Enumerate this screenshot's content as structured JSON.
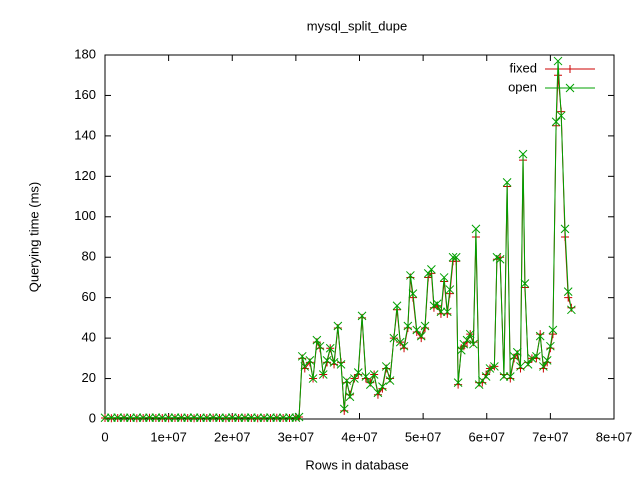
{
  "chart_data": {
    "type": "line",
    "title": "mysql_split_dupe",
    "xlabel": "Rows in database",
    "ylabel": "Querying time (ms)",
    "x": [
      0,
      1000000.0,
      2000000.0,
      3000000.0,
      4000000.0,
      5000000.0,
      6000000.0,
      7000000.0,
      8000000.0,
      9000000.0,
      10000000.0,
      11000000.0,
      12000000.0,
      13000000.0,
      14000000.0,
      15000000.0,
      16000000.0,
      17000000.0,
      18000000.0,
      19000000.0,
      20000000.0,
      21000000.0,
      22000000.0,
      23000000.0,
      24000000.0,
      25000000.0,
      26000000.0,
      27000000.0,
      28000000.0,
      29000000.0,
      30000000.0,
      30500000.0,
      31000000.0,
      31400000.0,
      32200000.0,
      32700000.0,
      33300000.0,
      33800000.0,
      34300000.0,
      34900000.0,
      35400000.0,
      36000000.0,
      36600000.0,
      37100000.0,
      37600000.0,
      38000000.0,
      38500000.0,
      39200000.0,
      39800000.0,
      40400000.0,
      41000000.0,
      41700000.0,
      42300000.0,
      42900000.0,
      43600000.0,
      44200000.0,
      44800000.0,
      45400000.0,
      45900000.0,
      46400000.0,
      47000000.0,
      47600000.0,
      48000000.0,
      48400000.0,
      49000000.0,
      49700000.0,
      50300000.0,
      50800000.0,
      51300000.0,
      51700000.0,
      52200000.0,
      52800000.0,
      53300000.0,
      53800000.0,
      54200000.0,
      54700000.0,
      55200000.0,
      55500000.0,
      56000000.0,
      56400000.0,
      56900000.0,
      57400000.0,
      57900000.0,
      58300000.0,
      58800000.0,
      59300000.0,
      59900000.0,
      60500000.0,
      61200000.0,
      61600000.0,
      62100000.0,
      62700000.0,
      63200000.0,
      63700000.0,
      64300000.0,
      64800000.0,
      65300000.0,
      65700000.0,
      66000000.0,
      66500000.0,
      67100000.0,
      67800000.0,
      68400000.0,
      68900000.0,
      69500000.0,
      70000000.0,
      70400000.0,
      70900000.0,
      71200000.0,
      71700000.0,
      72300000.0,
      72800000.0,
      73300000.0
    ],
    "series": [
      {
        "name": "fixed",
        "color": "#cc0000",
        "marker": "+",
        "values": [
          0.5,
          0.4,
          0.5,
          0.6,
          0.5,
          0.4,
          0.5,
          0.6,
          0.5,
          0.5,
          0.4,
          0.5,
          0.6,
          0.5,
          0.4,
          0.5,
          0.5,
          0.6,
          0.5,
          0.4,
          0.5,
          0.5,
          0.6,
          0.5,
          0.4,
          0.5,
          0.5,
          0.6,
          0.5,
          0.5,
          0.6,
          1,
          30,
          25,
          28,
          20,
          38,
          35,
          22,
          28,
          35,
          27,
          45,
          28,
          4,
          18,
          12,
          20,
          22,
          50,
          20,
          18,
          22,
          12,
          15,
          25,
          20,
          40,
          54,
          38,
          35,
          45,
          70,
          60,
          43,
          40,
          45,
          70,
          72,
          55,
          56,
          52,
          68,
          52,
          62,
          78,
          78,
          17,
          35,
          36,
          38,
          42,
          38,
          90,
          18,
          18,
          22,
          25,
          26,
          79,
          80,
          22,
          115,
          20,
          30,
          32,
          25,
          128,
          65,
          28,
          30,
          30,
          42,
          25,
          28,
          35,
          42,
          145,
          170,
          152,
          90,
          60,
          55
        ]
      },
      {
        "name": "open",
        "color": "#00a000",
        "marker": "x",
        "values": [
          0.6,
          0.6,
          0.7,
          0.6,
          0.6,
          0.7,
          0.6,
          0.6,
          0.7,
          0.6,
          0.6,
          0.7,
          0.6,
          0.6,
          0.7,
          0.6,
          0.6,
          0.7,
          0.6,
          0.6,
          0.7,
          0.6,
          0.6,
          0.7,
          0.6,
          0.6,
          0.7,
          0.6,
          0.6,
          0.7,
          0.6,
          1,
          31,
          26,
          29,
          20,
          39,
          36,
          22,
          29,
          35,
          28,
          46,
          27,
          5,
          19,
          11,
          20,
          23,
          51,
          21,
          17,
          22,
          13,
          16,
          26,
          19,
          40,
          56,
          38,
          36,
          46,
          71,
          62,
          44,
          41,
          46,
          72,
          74,
          56,
          57,
          53,
          70,
          53,
          64,
          80,
          80,
          18,
          34,
          37,
          39,
          42,
          37,
          94,
          17,
          19,
          21,
          25,
          26,
          80,
          79,
          21,
          117,
          21,
          31,
          33,
          26,
          131,
          67,
          27,
          30,
          31,
          41,
          26,
          29,
          36,
          44,
          147,
          177,
          150,
          94,
          63,
          54
        ]
      }
    ],
    "xlim": [
      0,
      80000000.0
    ],
    "xticks": [
      0,
      {
        "value": 10000000.0,
        "label": "1e+07"
      },
      {
        "value": 20000000.0,
        "label": "2e+07"
      },
      {
        "value": 30000000.0,
        "label": "3e+07"
      },
      {
        "value": 40000000.0,
        "label": "4e+07"
      },
      {
        "value": 50000000.0,
        "label": "5e+07"
      },
      {
        "value": 60000000.0,
        "label": "6e+07"
      },
      {
        "value": 70000000.0,
        "label": "7e+07"
      },
      {
        "value": 80000000.0,
        "label": "8e+07"
      }
    ],
    "ylim": [
      0,
      180
    ],
    "yticks": [
      0,
      20,
      40,
      60,
      80,
      100,
      120,
      140,
      160,
      180
    ],
    "grid": false,
    "legend": "top-right"
  }
}
